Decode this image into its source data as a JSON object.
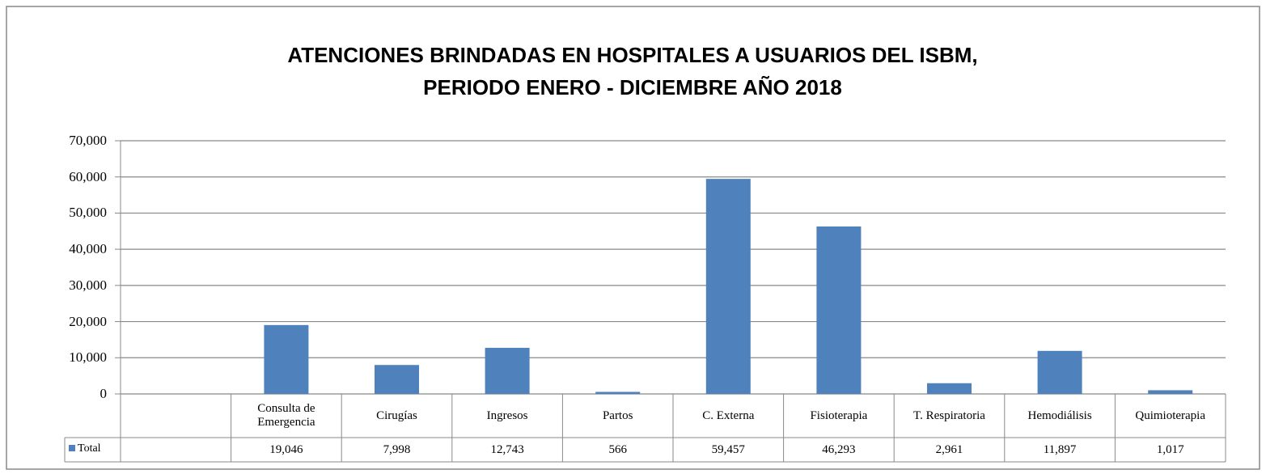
{
  "chart_data": {
    "type": "bar",
    "title": "ATENCIONES BRINDADAS EN HOSPITALES A USUARIOS DEL ISBM, PERIODO ENERO - DICIEMBRE AÑO 2018",
    "categories": [
      null,
      "Consulta de Emergencia",
      "Cirugías",
      "Ingresos",
      "Partos",
      "C. Externa",
      "Fisioterapia",
      "T. Respiratoria",
      "Hemodiálisis",
      "Quimioterapia"
    ],
    "series": [
      {
        "name": "Total",
        "color": "#4f81bd",
        "values": [
          null,
          19046,
          7998,
          12743,
          566,
          59457,
          46293,
          2961,
          11897,
          1017
        ],
        "value_labels": [
          null,
          "19,046",
          "7,998",
          "12,743",
          "566",
          "59,457",
          "46,293",
          "2,961",
          "11,897",
          "1,017"
        ]
      }
    ],
    "ylim": [
      0,
      70000
    ],
    "yticks": [
      0,
      {
        "value": 10000,
        "label": "10,000"
      },
      {
        "value": 20000,
        "label": "20,000"
      },
      {
        "value": 30000,
        "label": "30,000"
      },
      {
        "value": 40000,
        "label": "40,000"
      },
      {
        "value": 50000,
        "label": "50,000"
      },
      {
        "value": 60000,
        "label": "60,000"
      },
      {
        "value": 70000,
        "label": "70,000"
      }
    ],
    "grid": true
  }
}
